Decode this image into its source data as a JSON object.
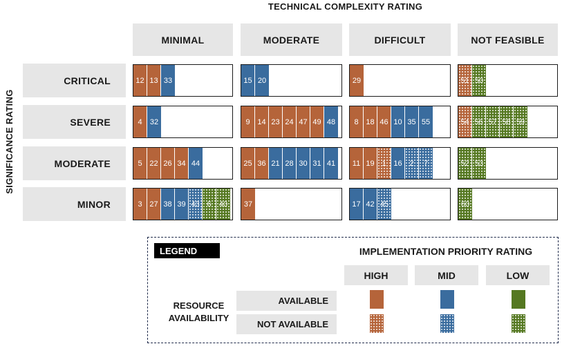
{
  "top_title": "TECHNICAL COMPLEXITY RATING",
  "side_title": "SIGNIFICANCE RATING",
  "columns": [
    "MINIMAL",
    "MODERATE",
    "DIFFICULT",
    "NOT FEASIBLE"
  ],
  "rows": [
    {
      "label": "CRITICAL",
      "cells": [
        [
          {
            "n": "12",
            "p": "high",
            "a": true
          },
          {
            "n": "13",
            "p": "high",
            "a": true
          },
          {
            "n": "33",
            "p": "mid",
            "a": true
          }
        ],
        [
          {
            "n": "15",
            "p": "mid",
            "a": true
          },
          {
            "n": "20",
            "p": "mid",
            "a": true
          }
        ],
        [
          {
            "n": "29",
            "p": "high",
            "a": true
          }
        ],
        [
          {
            "n": "51",
            "p": "high",
            "a": false
          },
          {
            "n": "50",
            "p": "low",
            "a": false
          }
        ]
      ]
    },
    {
      "label": "SEVERE",
      "cells": [
        [
          {
            "n": "4",
            "p": "high",
            "a": true
          },
          {
            "n": "32",
            "p": "mid",
            "a": true
          }
        ],
        [
          {
            "n": "9",
            "p": "high",
            "a": true
          },
          {
            "n": "14",
            "p": "high",
            "a": true
          },
          {
            "n": "23",
            "p": "high",
            "a": true
          },
          {
            "n": "24",
            "p": "high",
            "a": true
          },
          {
            "n": "47",
            "p": "high",
            "a": true
          },
          {
            "n": "49",
            "p": "high",
            "a": true
          },
          {
            "n": "48",
            "p": "mid",
            "a": true
          }
        ],
        [
          {
            "n": "8",
            "p": "high",
            "a": true
          },
          {
            "n": "18",
            "p": "high",
            "a": true
          },
          {
            "n": "46",
            "p": "high",
            "a": true
          },
          {
            "n": "10",
            "p": "mid",
            "a": true
          },
          {
            "n": "35",
            "p": "mid",
            "a": true
          },
          {
            "n": "55",
            "p": "mid",
            "a": true
          }
        ],
        [
          {
            "n": "54",
            "p": "high",
            "a": false
          },
          {
            "n": "56",
            "p": "low",
            "a": false
          },
          {
            "n": "57",
            "p": "low",
            "a": false
          },
          {
            "n": "58",
            "p": "low",
            "a": false
          },
          {
            "n": "59",
            "p": "low",
            "a": false
          }
        ]
      ]
    },
    {
      "label": "MODERATE",
      "cells": [
        [
          {
            "n": "5",
            "p": "high",
            "a": true
          },
          {
            "n": "22",
            "p": "high",
            "a": true
          },
          {
            "n": "26",
            "p": "high",
            "a": true
          },
          {
            "n": "34",
            "p": "high",
            "a": true
          },
          {
            "n": "44",
            "p": "mid",
            "a": true
          }
        ],
        [
          {
            "n": "25",
            "p": "high",
            "a": true
          },
          {
            "n": "36",
            "p": "high",
            "a": true
          },
          {
            "n": "21",
            "p": "mid",
            "a": true
          },
          {
            "n": "28",
            "p": "mid",
            "a": true
          },
          {
            "n": "30",
            "p": "mid",
            "a": true
          },
          {
            "n": "31",
            "p": "mid",
            "a": true
          },
          {
            "n": "41",
            "p": "mid",
            "a": true
          }
        ],
        [
          {
            "n": "11",
            "p": "high",
            "a": true
          },
          {
            "n": "19",
            "p": "high",
            "a": true
          },
          {
            "n": "1",
            "p": "high",
            "a": false
          },
          {
            "n": "16",
            "p": "mid",
            "a": true
          },
          {
            "n": "2",
            "p": "mid",
            "a": false
          },
          {
            "n": "7",
            "p": "mid",
            "a": false
          }
        ],
        [
          {
            "n": "52",
            "p": "low",
            "a": false
          },
          {
            "n": "53",
            "p": "low",
            "a": false
          }
        ]
      ]
    },
    {
      "label": "MINOR",
      "cells": [
        [
          {
            "n": "3",
            "p": "high",
            "a": true
          },
          {
            "n": "27",
            "p": "high",
            "a": true
          },
          {
            "n": "38",
            "p": "mid",
            "a": true
          },
          {
            "n": "39",
            "p": "mid",
            "a": true
          },
          {
            "n": "43",
            "p": "mid",
            "a": false
          },
          {
            "n": "6",
            "p": "low",
            "a": false
          },
          {
            "n": "40",
            "p": "low",
            "a": false
          }
        ],
        [
          {
            "n": "37",
            "p": "high",
            "a": true
          }
        ],
        [
          {
            "n": "17",
            "p": "mid",
            "a": true
          },
          {
            "n": "42",
            "p": "mid",
            "a": true
          },
          {
            "n": "45",
            "p": "mid",
            "a": false
          }
        ],
        [
          {
            "n": "60",
            "p": "low",
            "a": false
          }
        ]
      ]
    }
  ],
  "legend": {
    "label": "LEGEND",
    "priority_title": "IMPLEMENTATION PRIORITY RATING",
    "priority_levels": [
      "HIGH",
      "MID",
      "LOW"
    ],
    "resource_title": "RESOURCE AVAILABILITY",
    "availability_levels": [
      "AVAILABLE",
      "NOT AVAILABLE"
    ]
  },
  "colors": {
    "high": "#b5643a",
    "mid": "#3a6c9e",
    "low": "#557821"
  }
}
